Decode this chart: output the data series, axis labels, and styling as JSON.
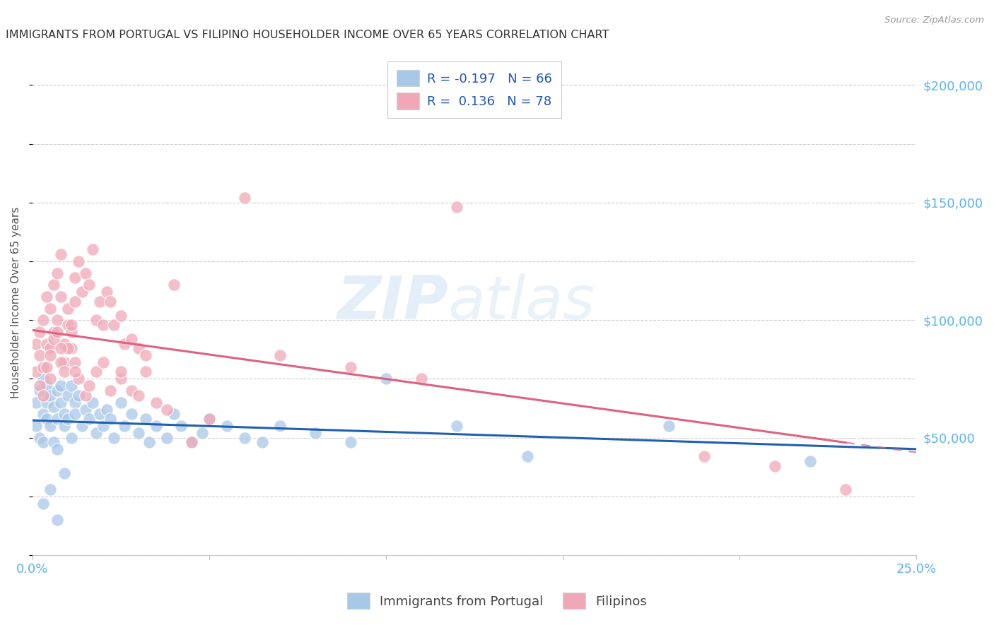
{
  "title": "IMMIGRANTS FROM PORTUGAL VS FILIPINO HOUSEHOLDER INCOME OVER 65 YEARS CORRELATION CHART",
  "source": "Source: ZipAtlas.com",
  "ylabel": "Householder Income Over 65 years",
  "x_min": 0.0,
  "x_max": 0.25,
  "y_min": 0,
  "y_max": 215000,
  "color_portugal": "#a8c8e8",
  "color_filipinos": "#f0a8b8",
  "color_line_portugal": "#2060b0",
  "color_line_filipinos": "#e06080",
  "color_axis_labels": "#5ab4f0",
  "color_title": "#333333",
  "watermark_zip": "ZIP",
  "watermark_atlas": "atlas",
  "portugal_x": [
    0.001,
    0.001,
    0.002,
    0.002,
    0.003,
    0.003,
    0.003,
    0.004,
    0.004,
    0.004,
    0.005,
    0.005,
    0.006,
    0.006,
    0.007,
    0.007,
    0.007,
    0.008,
    0.008,
    0.009,
    0.009,
    0.01,
    0.01,
    0.011,
    0.011,
    0.012,
    0.012,
    0.013,
    0.014,
    0.015,
    0.016,
    0.017,
    0.018,
    0.019,
    0.02,
    0.021,
    0.022,
    0.023,
    0.025,
    0.026,
    0.028,
    0.03,
    0.032,
    0.033,
    0.035,
    0.038,
    0.04,
    0.042,
    0.045,
    0.048,
    0.05,
    0.055,
    0.06,
    0.065,
    0.07,
    0.08,
    0.09,
    0.1,
    0.12,
    0.14,
    0.18,
    0.22,
    0.003,
    0.005,
    0.007,
    0.009
  ],
  "portugal_y": [
    65000,
    55000,
    70000,
    50000,
    75000,
    60000,
    48000,
    72000,
    58000,
    65000,
    68000,
    55000,
    63000,
    48000,
    70000,
    58000,
    45000,
    65000,
    72000,
    60000,
    55000,
    68000,
    58000,
    72000,
    50000,
    65000,
    60000,
    68000,
    55000,
    62000,
    58000,
    65000,
    52000,
    60000,
    55000,
    62000,
    58000,
    50000,
    65000,
    55000,
    60000,
    52000,
    58000,
    48000,
    55000,
    50000,
    60000,
    55000,
    48000,
    52000,
    58000,
    55000,
    50000,
    48000,
    55000,
    52000,
    48000,
    75000,
    55000,
    42000,
    55000,
    40000,
    22000,
    28000,
    15000,
    35000
  ],
  "filipinos_x": [
    0.001,
    0.001,
    0.002,
    0.002,
    0.003,
    0.003,
    0.004,
    0.004,
    0.005,
    0.005,
    0.006,
    0.006,
    0.007,
    0.007,
    0.008,
    0.008,
    0.009,
    0.009,
    0.01,
    0.01,
    0.011,
    0.011,
    0.012,
    0.012,
    0.013,
    0.014,
    0.015,
    0.016,
    0.017,
    0.018,
    0.019,
    0.02,
    0.021,
    0.022,
    0.023,
    0.025,
    0.026,
    0.028,
    0.03,
    0.032,
    0.002,
    0.003,
    0.004,
    0.005,
    0.006,
    0.007,
    0.008,
    0.009,
    0.01,
    0.011,
    0.012,
    0.013,
    0.015,
    0.018,
    0.022,
    0.025,
    0.028,
    0.032,
    0.038,
    0.045,
    0.005,
    0.008,
    0.012,
    0.016,
    0.02,
    0.025,
    0.03,
    0.04,
    0.06,
    0.12,
    0.035,
    0.05,
    0.07,
    0.09,
    0.11,
    0.19,
    0.21,
    0.23
  ],
  "filipinos_y": [
    90000,
    78000,
    85000,
    95000,
    100000,
    80000,
    110000,
    90000,
    88000,
    105000,
    115000,
    95000,
    120000,
    100000,
    128000,
    110000,
    90000,
    82000,
    98000,
    105000,
    88000,
    95000,
    108000,
    118000,
    125000,
    112000,
    120000,
    115000,
    130000,
    100000,
    108000,
    98000,
    112000,
    108000,
    98000,
    102000,
    90000,
    92000,
    88000,
    85000,
    72000,
    68000,
    80000,
    85000,
    92000,
    95000,
    82000,
    78000,
    88000,
    98000,
    82000,
    75000,
    68000,
    78000,
    70000,
    75000,
    70000,
    78000,
    62000,
    48000,
    75000,
    88000,
    78000,
    72000,
    82000,
    78000,
    68000,
    115000,
    152000,
    148000,
    65000,
    58000,
    85000,
    80000,
    75000,
    42000,
    38000,
    28000
  ]
}
